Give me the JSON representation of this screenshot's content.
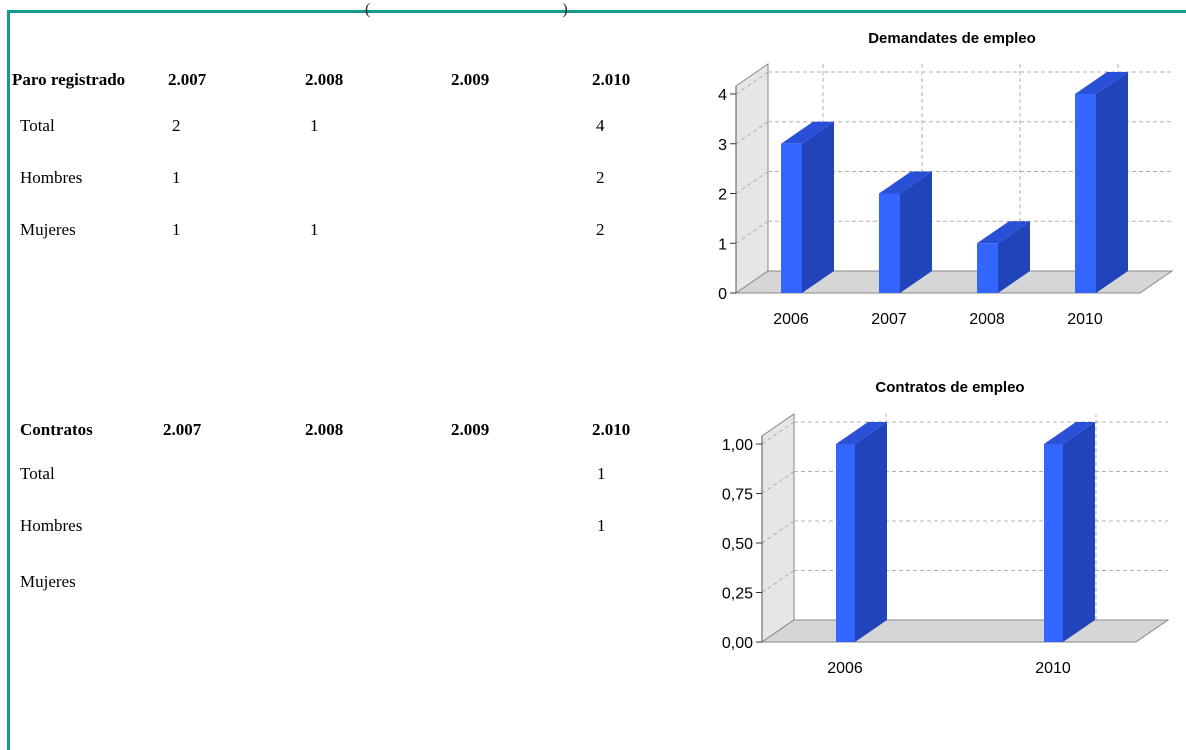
{
  "top_fragment": "(                                                )",
  "tables": [
    {
      "header": [
        "Paro registrado",
        "2.007",
        "2.008",
        "2.009",
        "2.010"
      ],
      "rows": [
        {
          "label": "Total",
          "values": [
            "2",
            "1",
            "",
            "4"
          ]
        },
        {
          "label": "Hombres",
          "values": [
            "1",
            "",
            "",
            "2"
          ]
        },
        {
          "label": "Mujeres",
          "values": [
            "1",
            "1",
            "",
            "2"
          ]
        }
      ]
    },
    {
      "header": [
        "Contratos",
        "2.007",
        "2.008",
        "2.009",
        "2.010"
      ],
      "rows": [
        {
          "label": "Total",
          "values": [
            "",
            "",
            "",
            "1"
          ]
        },
        {
          "label": "Hombres",
          "values": [
            "",
            "",
            "",
            "1"
          ]
        },
        {
          "label": "Mujeres",
          "values": [
            "",
            "",
            "",
            ""
          ]
        }
      ]
    }
  ],
  "chart_data": [
    {
      "type": "bar",
      "title": "Demandates de empleo",
      "categories": [
        "2006",
        "2007",
        "2008",
        "2010"
      ],
      "values": [
        3,
        2,
        1,
        4
      ],
      "ylim": [
        0,
        4
      ],
      "yticks": [
        "0",
        "1",
        "2",
        "3",
        "4"
      ],
      "grid": true,
      "colors": {
        "front": "#3366ff",
        "side": "#2244bb",
        "top": "#2a50d8",
        "floor": "#d6d6d6",
        "wall": "#e6e6e6"
      }
    },
    {
      "type": "bar",
      "title": "Contratos de empleo",
      "categories": [
        "2006",
        "2010"
      ],
      "values": [
        1,
        1
      ],
      "ylim": [
        0,
        1
      ],
      "yticks": [
        "0,00",
        "0,25",
        "0,50",
        "0,75",
        "1,00"
      ],
      "grid": true,
      "colors": {
        "front": "#3366ff",
        "side": "#2244bb",
        "top": "#2a50d8",
        "floor": "#d6d6d6",
        "wall": "#e6e6e6"
      }
    }
  ]
}
